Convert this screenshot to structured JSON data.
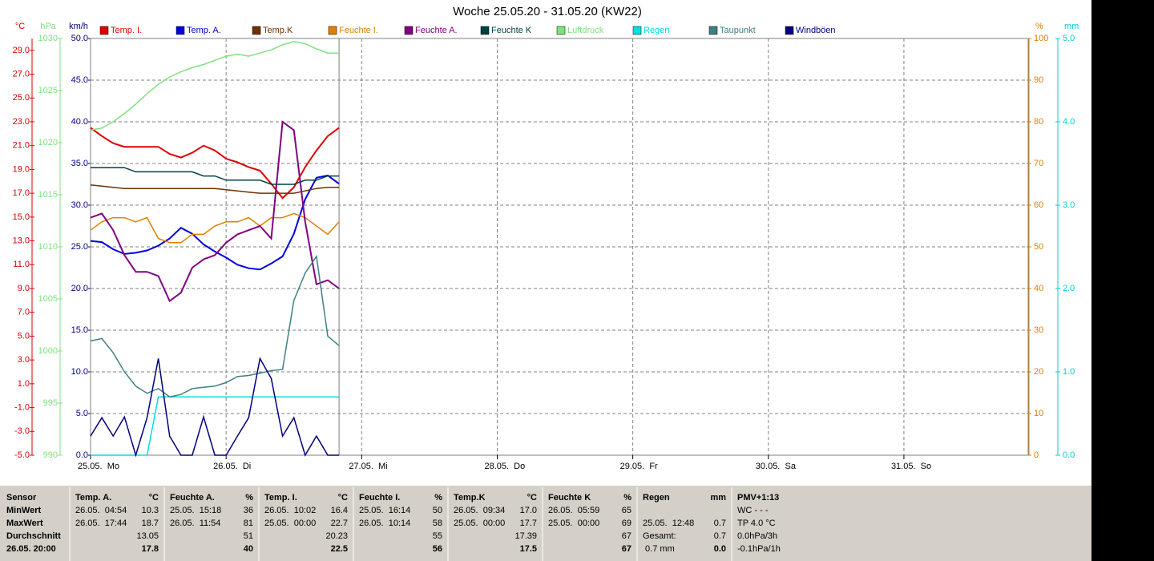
{
  "chart_data": {
    "type": "line",
    "title": "Woche 25.05.20 - 31.05.20 (KW22)",
    "x": [
      0,
      2,
      4,
      6,
      8,
      10,
      12,
      14,
      16,
      18,
      20,
      22,
      24,
      26,
      28,
      30,
      32,
      34,
      36,
      38,
      40,
      42,
      44
    ],
    "xlim": [
      0,
      166
    ],
    "xticks": [
      {
        "value": 0,
        "label": "25.05.  Mo"
      },
      {
        "value": 24,
        "label": "26.05.  Di"
      },
      {
        "value": 48,
        "label": "27.05.  Mi"
      },
      {
        "value": 72,
        "label": "28.05.  Do"
      },
      {
        "value": 96,
        "label": "29.05.  Fr"
      },
      {
        "value": 120,
        "label": "30.05.  Sa"
      },
      {
        "value": 144,
        "label": "31.05.  So"
      }
    ],
    "axes": [
      {
        "unit": "°C",
        "color": "#e00000",
        "side": "left",
        "lim": [
          -5,
          30
        ],
        "ticks": [
          {
            "value": -5,
            "label": "-5.0"
          },
          {
            "value": -3,
            "label": "-3.0"
          },
          {
            "value": -1,
            "label": "-1.0"
          },
          {
            "value": 1,
            "label": "1.0"
          },
          {
            "value": 3,
            "label": "3.0"
          },
          {
            "value": 5,
            "label": "5.0"
          },
          {
            "value": 7,
            "label": "7.0"
          },
          {
            "value": 9,
            "label": "9.0"
          },
          {
            "value": 11,
            "label": "11.0"
          },
          {
            "value": 13,
            "label": "13.0"
          },
          {
            "value": 15,
            "label": "15.0"
          },
          {
            "value": 17,
            "label": "17.0"
          },
          {
            "value": 19,
            "label": "19.0"
          },
          {
            "value": 21,
            "label": "21.0"
          },
          {
            "value": 23,
            "label": "23.0"
          },
          {
            "value": 25,
            "label": "25.0"
          },
          {
            "value": 27,
            "label": "27.0"
          },
          {
            "value": 29,
            "label": "29.0"
          }
        ]
      },
      {
        "unit": "hPa",
        "color": "#80e080",
        "side": "left",
        "lim": [
          990,
          1030
        ],
        "ticks": [
          990,
          995,
          1000,
          1005,
          1010,
          1015,
          1020,
          1025,
          1030
        ]
      },
      {
        "unit": "km/h",
        "color": "#000080",
        "side": "left",
        "lim": [
          0,
          50
        ],
        "grid": true,
        "ticks": [
          {
            "value": 0,
            "label": "0.0"
          },
          {
            "value": 5,
            "label": "5.0"
          },
          {
            "value": 10,
            "label": "10.0"
          },
          {
            "value": 15,
            "label": "15.0"
          },
          {
            "value": 20,
            "label": "20.0"
          },
          {
            "value": 25,
            "label": "25.0"
          },
          {
            "value": 30,
            "label": "30.0"
          },
          {
            "value": 35,
            "label": "35.0"
          },
          {
            "value": 40,
            "label": "40.0"
          },
          {
            "value": 45,
            "label": "45.0"
          },
          {
            "value": 50,
            "label": "50.0"
          }
        ]
      },
      {
        "unit": "%",
        "color": "#e08000",
        "side": "right",
        "lim": [
          0,
          100
        ],
        "ticks": [
          0,
          10,
          20,
          30,
          40,
          50,
          60,
          70,
          80,
          90,
          100
        ]
      },
      {
        "unit": "mm",
        "color": "#00d0d0",
        "side": "right",
        "lim": [
          0,
          5
        ],
        "ticks": [
          {
            "value": 0,
            "label": "0.0"
          },
          {
            "value": 1,
            "label": "1.0"
          },
          {
            "value": 2,
            "label": "2.0"
          },
          {
            "value": 3,
            "label": "3.0"
          },
          {
            "value": 4,
            "label": "4.0"
          },
          {
            "value": 5,
            "label": "5.0"
          }
        ]
      }
    ],
    "series": [
      {
        "name": "Temp. I.",
        "color": "#e00000",
        "axis": 0,
        "values": [
          22.5,
          21.8,
          21.2,
          20.9,
          20.9,
          20.9,
          20.9,
          20.3,
          20.0,
          20.4,
          21.0,
          20.6,
          19.9,
          19.6,
          19.2,
          18.9,
          17.8,
          16.6,
          17.5,
          19.2,
          20.6,
          21.8,
          22.5
        ]
      },
      {
        "name": "Temp. A.",
        "color": "#0000e0",
        "axis": 0,
        "values": [
          13.0,
          12.9,
          12.3,
          11.9,
          12.0,
          12.2,
          12.6,
          13.2,
          14.1,
          13.6,
          12.7,
          12.1,
          11.6,
          11.0,
          10.7,
          10.6,
          11.1,
          11.7,
          13.6,
          16.5,
          18.3,
          18.5,
          17.8
        ]
      },
      {
        "name": "Temp.K",
        "color": "#703000",
        "axis": 0,
        "values": [
          17.7,
          17.6,
          17.5,
          17.4,
          17.4,
          17.4,
          17.4,
          17.4,
          17.4,
          17.4,
          17.4,
          17.4,
          17.3,
          17.2,
          17.1,
          17.0,
          17.0,
          17.0,
          17.0,
          17.2,
          17.4,
          17.5,
          17.5
        ]
      },
      {
        "name": "Feuchte I.",
        "color": "#e08000",
        "axis": 3,
        "values": [
          54,
          56,
          57,
          57,
          56,
          57,
          52,
          51,
          51,
          53,
          53,
          55,
          56,
          56,
          57,
          55,
          57,
          57,
          58,
          57,
          55,
          53,
          56
        ]
      },
      {
        "name": "Feuchte A.",
        "color": "#800080",
        "axis": 3,
        "values": [
          57,
          58,
          54,
          48,
          44,
          44,
          43,
          37,
          39,
          45,
          47,
          48,
          51,
          53,
          54,
          55,
          52,
          80,
          78,
          56,
          41,
          42,
          40
        ]
      },
      {
        "name": "Feuchte K",
        "color": "#004040",
        "axis": 3,
        "values": [
          69,
          69,
          69,
          69,
          68,
          68,
          68,
          68,
          68,
          68,
          67,
          67,
          66,
          66,
          66,
          66,
          65,
          65,
          65,
          66,
          66,
          67,
          67
        ]
      },
      {
        "name": "Luftdruck",
        "color": "#80e080",
        "axis": 1,
        "values": [
          1021.2,
          1021.4,
          1022.0,
          1022.8,
          1023.7,
          1024.7,
          1025.6,
          1026.3,
          1026.8,
          1027.2,
          1027.5,
          1027.9,
          1028.3,
          1028.5,
          1028.3,
          1028.6,
          1028.9,
          1029.4,
          1029.7,
          1029.5,
          1029.0,
          1028.6,
          1028.6
        ]
      },
      {
        "name": "Regen",
        "color": "#00e0e0",
        "axis": 4,
        "values": [
          0,
          0,
          0,
          0,
          0,
          0,
          0.7,
          0.7,
          0.7,
          0.7,
          0.7,
          0.7,
          0.7,
          0.7,
          0.7,
          0.7,
          0.7,
          0.7,
          0.7,
          0.7,
          0.7,
          0.7,
          0.7
        ]
      },
      {
        "name": "Taupunkt",
        "color": "#408080",
        "axis": 0,
        "values": [
          4.6,
          4.8,
          3.6,
          2.0,
          0.8,
          0.2,
          0.6,
          -0.1,
          0.1,
          0.6,
          0.7,
          0.8,
          1.1,
          1.6,
          1.7,
          1.9,
          2.1,
          2.2,
          8.0,
          10.3,
          11.7,
          5.0,
          4.2
        ]
      },
      {
        "name": "Windböen",
        "color": "#000080",
        "axis": 2,
        "values": [
          2.3,
          4.5,
          2.3,
          4.6,
          0,
          4.5,
          11.6,
          2.3,
          0,
          0,
          4.6,
          0,
          0,
          2.3,
          4.5,
          11.6,
          9.2,
          2.3,
          4.5,
          0,
          2.3,
          0,
          0
        ]
      }
    ]
  },
  "table": {
    "sensor_label": "Sensor",
    "columns": [
      {
        "name": "Temp. A.",
        "unit": "°C"
      },
      {
        "name": "Feuchte A.",
        "unit": "%"
      },
      {
        "name": "Temp. I.",
        "unit": "°C"
      },
      {
        "name": "Feuchte I.",
        "unit": "%"
      },
      {
        "name": "Temp.K",
        "unit": "°C"
      },
      {
        "name": "Feuchte K",
        "unit": "%"
      },
      {
        "name": "Regen",
        "unit": "mm"
      },
      {
        "name": "PMV+1:13"
      }
    ],
    "rows": [
      {
        "label": "MinWert",
        "cells": [
          [
            "26.05.  04:54",
            "10.3"
          ],
          [
            "25.05.  15:18",
            "36"
          ],
          [
            "26.05.  10:02",
            "16.4"
          ],
          [
            "25.05.  16:14",
            "50"
          ],
          [
            "26.05.  09:34",
            "17.0"
          ],
          [
            "26.05.  05:59",
            "65"
          ],
          [],
          [
            "WC - - -"
          ]
        ]
      },
      {
        "label": "MaxWert",
        "cells": [
          [
            "26.05.  17:44",
            "18.7"
          ],
          [
            "26.05.  11:54",
            "81"
          ],
          [
            "25.05.  00:00",
            "22.7"
          ],
          [
            "26.05.  10:14",
            "58"
          ],
          [
            "25.05.  00:00",
            "17.7"
          ],
          [
            "25.05.  00:00",
            "69"
          ],
          [
            "25.05.  12:48",
            "0.7"
          ],
          [
            "TP 4.0 °C"
          ]
        ]
      },
      {
        "label": "Durchschnitt",
        "cells": [
          [
            "13.05"
          ],
          [
            "51"
          ],
          [
            "20.23"
          ],
          [
            "55"
          ],
          [
            "17.39"
          ],
          [
            "67"
          ],
          [
            "Gesamt:",
            "0.7"
          ],
          [
            "0.0hPa/3h"
          ]
        ]
      },
      {
        "label": "26.05. 20:00",
        "bold": true,
        "cells": [
          [
            "17.8"
          ],
          [
            "40"
          ],
          [
            "22.5"
          ],
          [
            "56"
          ],
          [
            "17.5"
          ],
          [
            "67"
          ],
          [
            " 0.7 mm",
            "0.0"
          ],
          [
            "-0.1hPa/1h"
          ]
        ]
      }
    ]
  }
}
